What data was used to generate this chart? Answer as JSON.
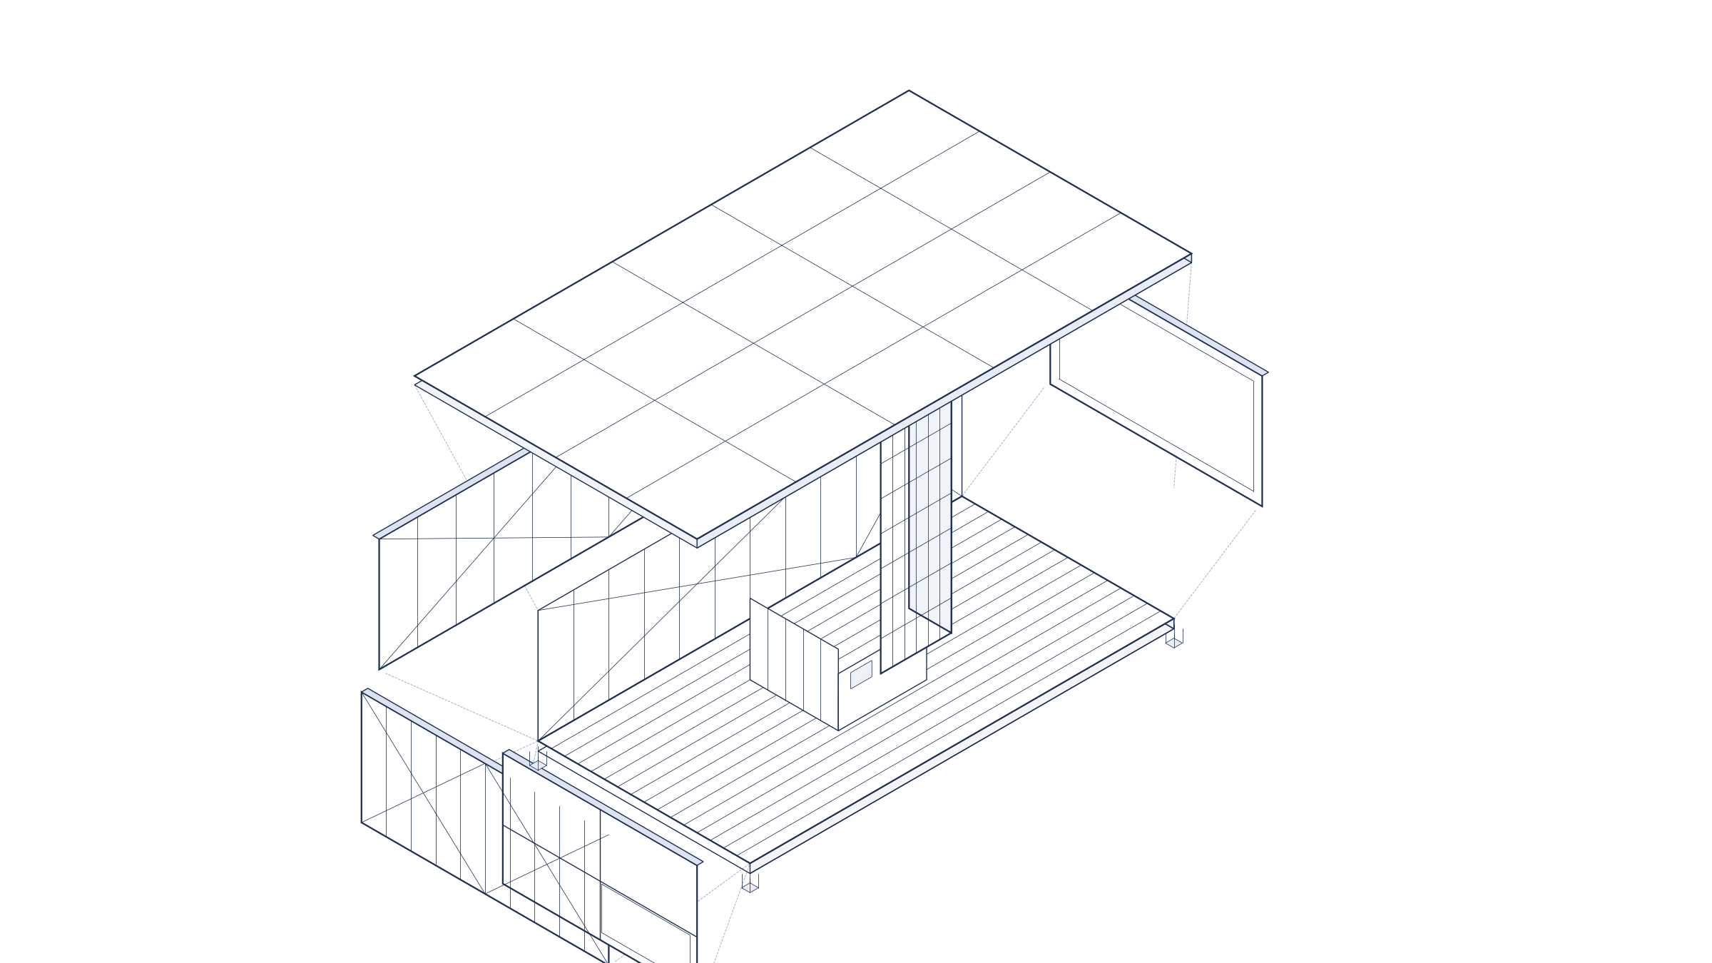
{
  "bg_color": "#ffffff",
  "line_color": "#1c2f52",
  "dash_color": "#7090b8",
  "lw_heavy": 1.6,
  "lw_medium": 1.0,
  "lw_thin": 0.55,
  "lw_dashed": 0.65,
  "figsize": [
    24.0,
    13.5
  ],
  "dpi": 100,
  "xlim": [
    -12,
    12
  ],
  "ylim": [
    -5,
    12
  ]
}
